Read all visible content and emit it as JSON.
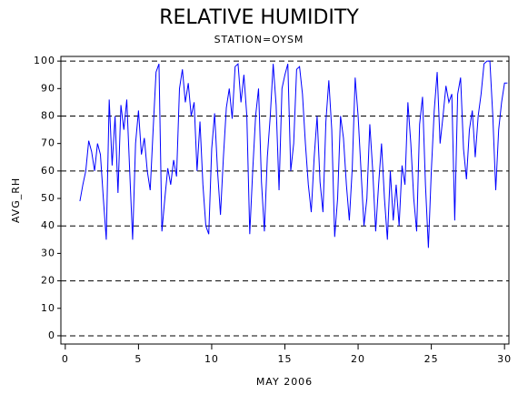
{
  "chart_data": {
    "type": "line",
    "title": "RELATIVE HUMIDITY",
    "subtitle": "STATION=OYSM",
    "x_label": "MAY 2006",
    "y_label": "AVG_RH",
    "color": "#0000ff",
    "xlim": [
      -0.3,
      30.3
    ],
    "ylim": [
      -3,
      101.7
    ],
    "xticks": [
      0,
      5,
      10,
      15,
      20,
      25,
      30
    ],
    "yticks": [
      0,
      10,
      20,
      30,
      40,
      50,
      60,
      70,
      80,
      90,
      100
    ],
    "grid": true,
    "x": [
      1,
      1.2,
      1.4,
      1.6,
      1.8,
      2,
      2.2,
      2.4,
      2.6,
      2.8,
      3,
      3.2,
      3.4,
      3.6,
      3.8,
      4,
      4.2,
      4.4,
      4.6,
      4.8,
      5,
      5.2,
      5.4,
      5.6,
      5.8,
      6,
      6.2,
      6.4,
      6.6,
      6.8,
      7,
      7.2,
      7.4,
      7.6,
      7.8,
      8,
      8.2,
      8.4,
      8.6,
      8.8,
      9,
      9.2,
      9.4,
      9.6,
      9.8,
      10,
      10.2,
      10.4,
      10.6,
      10.8,
      11,
      11.2,
      11.4,
      11.6,
      11.8,
      12,
      12.2,
      12.4,
      12.6,
      12.8,
      13,
      13.2,
      13.4,
      13.6,
      13.8,
      14,
      14.2,
      14.4,
      14.6,
      14.8,
      15,
      15.2,
      15.4,
      15.6,
      15.8,
      16,
      16.2,
      16.4,
      16.6,
      16.8,
      17,
      17.2,
      17.4,
      17.6,
      17.8,
      18,
      18.2,
      18.4,
      18.6,
      18.8,
      19,
      19.2,
      19.4,
      19.6,
      19.8,
      20,
      20.2,
      20.4,
      20.6,
      20.8,
      21,
      21.2,
      21.4,
      21.6,
      21.8,
      22,
      22.2,
      22.4,
      22.6,
      22.8,
      23,
      23.2,
      23.4,
      23.6,
      23.8,
      24,
      24.2,
      24.4,
      24.6,
      24.8,
      25,
      25.2,
      25.4,
      25.6,
      25.8,
      26,
      26.2,
      26.4,
      26.6,
      26.8,
      27,
      27.2,
      27.4,
      27.6,
      27.8,
      28,
      28.2,
      28.4,
      28.6,
      28.8,
      29,
      29.2,
      29.4,
      29.6,
      29.8,
      30,
      30.2
    ],
    "values": [
      49,
      55,
      60,
      71,
      67,
      60,
      70,
      66,
      50,
      35,
      86,
      62,
      80,
      52,
      84,
      75,
      86,
      60,
      35,
      70,
      82,
      66,
      72,
      60,
      53,
      75,
      96,
      99,
      38,
      50,
      61,
      55,
      64,
      58,
      90,
      97,
      85,
      92,
      80,
      85,
      60,
      78,
      55,
      40,
      37,
      68,
      81,
      60,
      44,
      65,
      83,
      90,
      79,
      98,
      99,
      85,
      95,
      80,
      37,
      60,
      80,
      90,
      56,
      38,
      65,
      80,
      99,
      84,
      53,
      90,
      95,
      99,
      60,
      70,
      97,
      98,
      88,
      70,
      55,
      45,
      65,
      80,
      56,
      45,
      78,
      93,
      75,
      36,
      50,
      80,
      72,
      55,
      42,
      61,
      94,
      80,
      60,
      40,
      50,
      77,
      60,
      38,
      55,
      70,
      50,
      35,
      60,
      42,
      55,
      40,
      62,
      55,
      85,
      70,
      50,
      38,
      77,
      87,
      55,
      32,
      60,
      82,
      96,
      70,
      80,
      91,
      85,
      88,
      42,
      88,
      94,
      68,
      57,
      75,
      82,
      65,
      80,
      88,
      99,
      100,
      100,
      80,
      53,
      75,
      85,
      92,
      92
    ]
  }
}
